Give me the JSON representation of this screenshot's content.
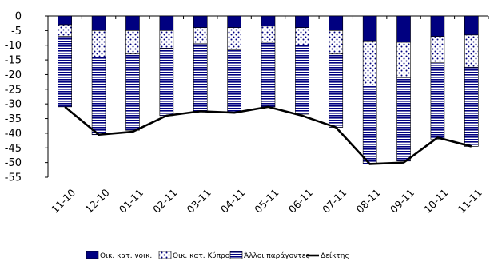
{
  "chart_data": {
    "type": "bar",
    "stacked": true,
    "categories": [
      "11-10",
      "12-10",
      "01-11",
      "02-11",
      "03-11",
      "04-11",
      "05-11",
      "06-11",
      "07-11",
      "08-11",
      "09-11",
      "10-11",
      "11-11"
    ],
    "series": [
      {
        "name": "Οικ. κατ. νοικ.",
        "color": "#000080",
        "pattern": "solid",
        "values": [
          -3,
          -5,
          -5,
          -5,
          -4,
          -4,
          -3.5,
          -4,
          -5,
          -8.5,
          -9,
          -7,
          -6.5
        ]
      },
      {
        "name": "Οικ. κατ. Κύπρου",
        "color": "#000080",
        "pattern": "dots",
        "values": [
          -4,
          -9,
          -8,
          -6,
          -5.5,
          -7.5,
          -5.5,
          -6,
          -8,
          -15,
          -12,
          -9,
          -11
        ]
      },
      {
        "name": "Άλλοι παράγοντες",
        "color": "#000080",
        "pattern": "stripes",
        "values": [
          -24,
          -26.5,
          -26,
          -23,
          -23,
          -21.5,
          -22,
          -23.5,
          -25,
          -27,
          -28.5,
          -26,
          -27
        ]
      },
      {
        "name": "Δείκτης",
        "type": "line",
        "color": "#000000",
        "values": [
          -31,
          -40.5,
          -39.5,
          -34,
          -32.5,
          -33,
          -31,
          -34,
          -38,
          -50.5,
          -50,
          -41.5,
          -44.5
        ]
      }
    ],
    "yticks": [
      "0",
      "-5",
      "-10",
      "-15",
      "-20",
      "-25",
      "-30",
      "-35",
      "-40",
      "-45",
      "-50",
      "-55"
    ],
    "ylim": [
      -55,
      0
    ],
    "grid": false,
    "legend_position": "bottom"
  }
}
